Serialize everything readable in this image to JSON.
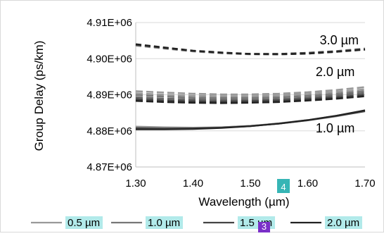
{
  "chart_data": {
    "type": "line",
    "title": "",
    "xlabel": "Wavelength (µm)",
    "ylabel": "Group Delay (ps/km)",
    "xlim": [
      1.3,
      1.7
    ],
    "ylim": [
      4870000,
      4910000
    ],
    "x_ticks": [
      "1.30",
      "1.40",
      "1.50",
      "1.60",
      "1.70"
    ],
    "y_ticks": [
      "4.87E+06",
      "4.88E+06",
      "4.89E+06",
      "4.90E+06",
      "4.91E+06"
    ],
    "grid": "horizontal",
    "legend_position": "bottom",
    "colors": {
      "grid": "#d9d9d9",
      "axis": "#bfbfbf",
      "legend_highlight": "#b2eaea",
      "badge_teal": "#36b5b5",
      "badge_purple": "#7a2fc8"
    },
    "legend": [
      {
        "label": "0.5 µm",
        "color": "#999999"
      },
      {
        "label": "1.0 µm",
        "color": "#777777"
      },
      {
        "label": "1.5 µm",
        "color": "#444444"
      },
      {
        "label": "2.0 µm",
        "color": "#222222"
      }
    ],
    "annotations": [
      {
        "text": "3.0 µm",
        "x": 1.655,
        "y": 4904000
      },
      {
        "text": "2.0 µm",
        "x": 1.648,
        "y": 4895200
      },
      {
        "text": "1.0 µm",
        "x": 1.648,
        "y": 4879600
      }
    ],
    "badges": [
      {
        "text": "4",
        "color": "#36b5b5"
      },
      {
        "text": "3",
        "color": "#7a2fc8"
      }
    ],
    "series_groups": [
      {
        "group": "3.0 µm",
        "dash": "8,5",
        "series": [
          {
            "color": "#999999",
            "points": [
              [
                1.3,
                4903600
              ],
              [
                1.35,
                4902800
              ],
              [
                1.4,
                4902000
              ],
              [
                1.45,
                4901500
              ],
              [
                1.5,
                4901200
              ],
              [
                1.55,
                4901200
              ],
              [
                1.6,
                4901400
              ],
              [
                1.65,
                4901900
              ],
              [
                1.7,
                4902600
              ]
            ]
          },
          {
            "color": "#777777",
            "points": [
              [
                1.3,
                4903800
              ],
              [
                1.35,
                4902900
              ],
              [
                1.4,
                4902100
              ],
              [
                1.45,
                4901600
              ],
              [
                1.5,
                4901300
              ],
              [
                1.55,
                4901300
              ],
              [
                1.6,
                4901600
              ],
              [
                1.65,
                4902100
              ],
              [
                1.7,
                4902800
              ]
            ]
          },
          {
            "color": "#444444",
            "points": [
              [
                1.3,
                4903900
              ],
              [
                1.35,
                4903000
              ],
              [
                1.4,
                4902200
              ],
              [
                1.45,
                4901600
              ],
              [
                1.5,
                4901300
              ],
              [
                1.55,
                4901300
              ],
              [
                1.6,
                4901600
              ],
              [
                1.65,
                4902000
              ],
              [
                1.7,
                4902600
              ]
            ]
          },
          {
            "color": "#222222",
            "points": [
              [
                1.3,
                4904000
              ],
              [
                1.35,
                4903100
              ],
              [
                1.4,
                4902200
              ],
              [
                1.45,
                4901700
              ],
              [
                1.5,
                4901300
              ],
              [
                1.55,
                4901200
              ],
              [
                1.6,
                4901400
              ],
              [
                1.65,
                4901900
              ],
              [
                1.7,
                4902500
              ]
            ]
          }
        ]
      },
      {
        "group": "2.0 µm",
        "dash": "10,5",
        "series": [
          {
            "color": "#999999",
            "points": [
              [
                1.3,
                4891000
              ],
              [
                1.35,
                4890600
              ],
              [
                1.4,
                4890300
              ],
              [
                1.45,
                4890100
              ],
              [
                1.5,
                4890100
              ],
              [
                1.55,
                4890300
              ],
              [
                1.6,
                4890700
              ],
              [
                1.65,
                4891300
              ],
              [
                1.7,
                4892100
              ]
            ]
          },
          {
            "color": "#999999",
            "points": [
              [
                1.3,
                4890400
              ],
              [
                1.35,
                4890000
              ],
              [
                1.4,
                4889700
              ],
              [
                1.45,
                4889600
              ],
              [
                1.5,
                4889600
              ],
              [
                1.55,
                4889800
              ],
              [
                1.6,
                4890200
              ],
              [
                1.65,
                4890800
              ],
              [
                1.7,
                4891500
              ]
            ]
          },
          {
            "color": "#777777",
            "points": [
              [
                1.3,
                4889900
              ],
              [
                1.35,
                4889500
              ],
              [
                1.4,
                4889200
              ],
              [
                1.45,
                4889100
              ],
              [
                1.5,
                4889100
              ],
              [
                1.55,
                4889300
              ],
              [
                1.6,
                4889700
              ],
              [
                1.65,
                4890300
              ],
              [
                1.7,
                4891000
              ]
            ]
          },
          {
            "color": "#666666",
            "points": [
              [
                1.3,
                4889300
              ],
              [
                1.35,
                4888900
              ],
              [
                1.4,
                4888700
              ],
              [
                1.45,
                4888600
              ],
              [
                1.5,
                4888600
              ],
              [
                1.55,
                4888800
              ],
              [
                1.6,
                4889200
              ],
              [
                1.65,
                4889800
              ],
              [
                1.7,
                4890500
              ]
            ]
          },
          {
            "color": "#444444",
            "points": [
              [
                1.3,
                4888800
              ],
              [
                1.35,
                4888400
              ],
              [
                1.4,
                4888200
              ],
              [
                1.45,
                4888100
              ],
              [
                1.5,
                4888200
              ],
              [
                1.55,
                4888400
              ],
              [
                1.6,
                4888800
              ],
              [
                1.65,
                4889300
              ],
              [
                1.7,
                4890000
              ]
            ]
          },
          {
            "color": "#222222",
            "points": [
              [
                1.3,
                4888300
              ],
              [
                1.35,
                4888000
              ],
              [
                1.4,
                4887800
              ],
              [
                1.45,
                4887700
              ],
              [
                1.5,
                4887800
              ],
              [
                1.55,
                4888000
              ],
              [
                1.6,
                4888400
              ],
              [
                1.65,
                4888900
              ],
              [
                1.7,
                4889600
              ]
            ]
          }
        ]
      },
      {
        "group": "1.0 µm",
        "dash": "",
        "series": [
          {
            "color": "#999999",
            "points": [
              [
                1.3,
                4881200
              ],
              [
                1.35,
                4881000
              ],
              [
                1.4,
                4880900
              ],
              [
                1.45,
                4881000
              ],
              [
                1.5,
                4881400
              ],
              [
                1.55,
                4882000
              ],
              [
                1.6,
                4882900
              ],
              [
                1.65,
                4884000
              ],
              [
                1.7,
                4885500
              ]
            ]
          },
          {
            "color": "#777777",
            "points": [
              [
                1.3,
                4880900
              ],
              [
                1.35,
                4880800
              ],
              [
                1.4,
                4880800
              ],
              [
                1.45,
                4881000
              ],
              [
                1.5,
                4881400
              ],
              [
                1.55,
                4882100
              ],
              [
                1.6,
                4883000
              ],
              [
                1.65,
                4884200
              ],
              [
                1.7,
                4885600
              ]
            ]
          },
          {
            "color": "#444444",
            "points": [
              [
                1.3,
                4880700
              ],
              [
                1.35,
                4880600
              ],
              [
                1.4,
                4880700
              ],
              [
                1.45,
                4880900
              ],
              [
                1.5,
                4881300
              ],
              [
                1.55,
                4882000
              ],
              [
                1.6,
                4882900
              ],
              [
                1.65,
                4884100
              ],
              [
                1.7,
                4885400
              ]
            ]
          },
          {
            "color": "#222222",
            "points": [
              [
                1.3,
                4880400
              ],
              [
                1.35,
                4880400
              ],
              [
                1.4,
                4880500
              ],
              [
                1.45,
                4880800
              ],
              [
                1.5,
                4881300
              ],
              [
                1.55,
                4882000
              ],
              [
                1.6,
                4883000
              ],
              [
                1.65,
                4884200
              ],
              [
                1.7,
                4885700
              ]
            ]
          }
        ]
      }
    ]
  }
}
